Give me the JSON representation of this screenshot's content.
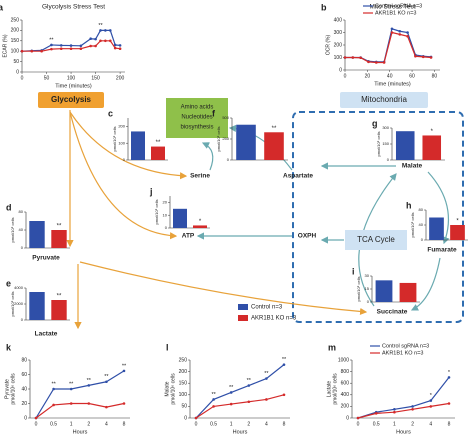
{
  "chart_data": [
    {
      "panel": "a",
      "type": "line",
      "title": "Glycolysis Stress Test",
      "xlabel": "Time (minutes)",
      "ylabel": "ECAR (%)",
      "x": [
        0,
        20,
        40,
        60,
        80,
        100,
        120,
        140,
        150,
        160,
        170,
        180,
        190,
        200
      ],
      "xlim": [
        0,
        210
      ],
      "xticks": [
        0,
        50,
        100,
        150,
        200
      ],
      "ylim": [
        0,
        250
      ],
      "yticks": [
        0,
        50,
        100,
        150,
        200,
        250
      ],
      "point_labels": [
        null,
        null,
        null,
        "**",
        null,
        null,
        null,
        null,
        null,
        "**",
        null,
        null,
        null,
        null
      ],
      "series": [
        {
          "color": "#2f4fa8",
          "values": [
            100,
            102,
            104,
            130,
            128,
            127,
            126,
            160,
            158,
            200,
            200,
            200,
            130,
            128
          ]
        },
        {
          "color": "#d42a2a",
          "values": [
            100,
            100,
            100,
            110,
            112,
            112,
            112,
            125,
            125,
            150,
            150,
            150,
            115,
            112
          ]
        }
      ]
    },
    {
      "panel": "b",
      "type": "line",
      "title": "Mito Stress Test",
      "xlabel": "Time (minutes)",
      "ylabel": "OCR (%)",
      "x": [
        0,
        7,
        14,
        21,
        28,
        35,
        42,
        49,
        56,
        63,
        70,
        77
      ],
      "xlim": [
        0,
        85
      ],
      "xticks": [
        0,
        20,
        40,
        60,
        80
      ],
      "ylim": [
        0,
        400
      ],
      "yticks": [
        0,
        100,
        200,
        300,
        400
      ],
      "legend": "upper-left",
      "series": [
        {
          "name": "Control sgRNA n=3",
          "color": "#2f4fa8",
          "values": [
            100,
            100,
            100,
            70,
            65,
            65,
            330,
            310,
            300,
            120,
            110,
            105
          ]
        },
        {
          "name": "AKR1B1 KO n=3",
          "color": "#d42a2a",
          "values": [
            100,
            100,
            98,
            65,
            60,
            60,
            300,
            285,
            270,
            110,
            105,
            100
          ]
        }
      ]
    },
    {
      "panel": "c",
      "type": "bar",
      "ylabel": "pmol/10⁶ cells",
      "values": [
        170,
        80
      ],
      "colors": [
        "#2f4fa8",
        "#d42a2a"
      ],
      "ylim": [
        0,
        250
      ],
      "yticks": [
        0,
        100,
        200
      ],
      "annotation": "**"
    },
    {
      "panel": "d",
      "type": "bar",
      "ylabel": "pmol/10⁶ cells",
      "values": [
        60,
        40
      ],
      "colors": [
        "#2f4fa8",
        "#d42a2a"
      ],
      "ylim": [
        0,
        80
      ],
      "yticks": [
        0,
        40,
        80
      ],
      "annotation": "**"
    },
    {
      "panel": "e",
      "type": "bar",
      "ylabel": "pmol/10⁶ cells",
      "values": [
        3500,
        2500
      ],
      "colors": [
        "#2f4fa8",
        "#d42a2a"
      ],
      "ylim": [
        0,
        4000
      ],
      "yticks": [
        0,
        2000,
        4000
      ],
      "annotation": "**"
    },
    {
      "panel": "f",
      "type": "bar",
      "ylabel": "pmol/10⁶ cells",
      "values": [
        420,
        330
      ],
      "colors": [
        "#2f4fa8",
        "#d42a2a"
      ],
      "ylim": [
        0,
        500
      ],
      "yticks": [
        0,
        250,
        500
      ],
      "annotation": "**"
    },
    {
      "panel": "g",
      "type": "bar",
      "ylabel": "pmol/10⁶ cells",
      "values": [
        270,
        230
      ],
      "colors": [
        "#2f4fa8",
        "#d42a2a"
      ],
      "ylim": [
        0,
        300
      ],
      "yticks": [
        0,
        150,
        300
      ],
      "annotation": "*"
    },
    {
      "panel": "h",
      "type": "bar",
      "ylabel": "pmol/10⁶ cells",
      "values": [
        60,
        40
      ],
      "colors": [
        "#2f4fa8",
        "#d42a2a"
      ],
      "ylim": [
        0,
        80
      ],
      "yticks": [
        0,
        40,
        80
      ],
      "annotation": "*"
    },
    {
      "panel": "i",
      "type": "bar",
      "ylabel": "pmol/10⁶ cells",
      "values": [
        25,
        22
      ],
      "colors": [
        "#2f4fa8",
        "#d42a2a"
      ],
      "ylim": [
        0,
        30
      ],
      "yticks": [
        0,
        15,
        30
      ]
    },
    {
      "panel": "j",
      "type": "bar",
      "ylabel": "pmol/10⁶ cells",
      "values": [
        15,
        2
      ],
      "colors": [
        "#2f4fa8",
        "#d42a2a"
      ],
      "ylim": [
        0,
        25
      ],
      "yticks": [
        0,
        10,
        20
      ],
      "annotation": "*"
    },
    {
      "panel": "k",
      "type": "line",
      "xlabel": "Hours",
      "ylabel": [
        "Pyruvate",
        "pmol/10⁶ cells"
      ],
      "categories": [
        "0",
        "0.5",
        "1",
        "2",
        "4",
        "8"
      ],
      "ylim": [
        0,
        80
      ],
      "yticks": [
        0,
        20,
        40,
        60,
        80
      ],
      "point_labels": [
        null,
        "**",
        "**",
        "**",
        "**",
        "**"
      ],
      "series": [
        {
          "color": "#2f4fa8",
          "values": [
            0,
            40,
            40,
            45,
            50,
            65
          ]
        },
        {
          "color": "#d42a2a",
          "values": [
            0,
            18,
            20,
            20,
            15,
            20
          ]
        }
      ]
    },
    {
      "panel": "l",
      "type": "line",
      "xlabel": "Hours",
      "ylabel": [
        "Malate",
        "pmol/10⁶ cells"
      ],
      "categories": [
        "0",
        "0.5",
        "1",
        "2",
        "4",
        "8"
      ],
      "ylim": [
        0,
        250
      ],
      "yticks": [
        0,
        50,
        100,
        150,
        200,
        250
      ],
      "point_labels": [
        null,
        "**",
        "**",
        "**",
        "**",
        "**"
      ],
      "series": [
        {
          "color": "#2f4fa8",
          "values": [
            0,
            80,
            110,
            140,
            170,
            230
          ]
        },
        {
          "color": "#d42a2a",
          "values": [
            0,
            50,
            60,
            70,
            80,
            100
          ]
        }
      ]
    },
    {
      "panel": "m",
      "type": "line",
      "xlabel": "Hours",
      "ylabel": [
        "Lactate",
        "pmol/10⁶ cells"
      ],
      "categories": [
        "0",
        "0.5",
        "1",
        "2",
        "4",
        "8"
      ],
      "ylim": [
        0,
        1000
      ],
      "yticks": [
        0,
        200,
        400,
        600,
        800,
        1000
      ],
      "legend": "upper-left",
      "point_labels": [
        null,
        null,
        null,
        null,
        "*",
        "*"
      ],
      "series": [
        {
          "name": "Control sgRNA n=3",
          "color": "#2f4fa8",
          "values": [
            0,
            100,
            150,
            200,
            300,
            700
          ]
        },
        {
          "name": "AKR1B1 KO n=3",
          "color": "#d42a2a",
          "values": [
            0,
            80,
            100,
            150,
            200,
            250
          ]
        }
      ]
    }
  ],
  "diagram": {
    "glycolysis": "Glycolysis",
    "mitochondria": "Mitochondria",
    "biosynthesis": [
      "Amino acids",
      "Nucleotides",
      "biosynthesis"
    ],
    "tca": "TCA Cycle",
    "nodes": [
      {
        "label": "Serine",
        "color": "#3a9a8a"
      },
      {
        "label": "Aspartate",
        "color": "#3a9a8a"
      },
      {
        "label": "Malate",
        "color": "#2f6db0"
      },
      {
        "label": "Fumarate",
        "color": "#2f6db0"
      },
      {
        "label": "Succinate",
        "color": "#2f6db0"
      },
      {
        "label": "ATP",
        "color": "#2f6db0"
      },
      {
        "label": "OXPH",
        "color": "#2f6db0"
      },
      {
        "label": "Pyruvate",
        "color": "#e09a2a"
      },
      {
        "label": "Lactate",
        "color": "#e09a2a"
      }
    ],
    "legend": [
      {
        "label": "Control n=3",
        "color": "#2f4fa8"
      },
      {
        "label": "AKR1B1 KO n=3",
        "color": "#d42a2a"
      }
    ]
  }
}
